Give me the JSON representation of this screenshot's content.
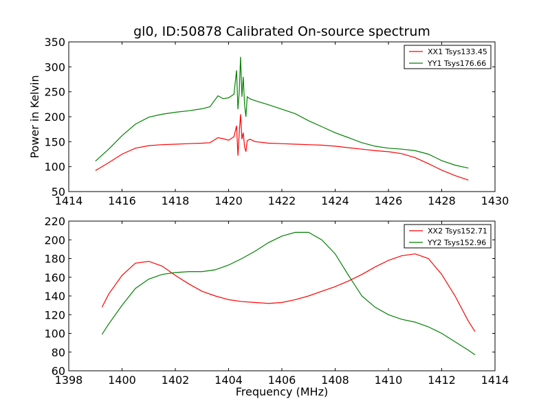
{
  "chart_data": [
    {
      "type": "line",
      "title": "gl0, ID:50878 Calibrated On-source spectrum",
      "xlabel": "",
      "ylabel": "Power in Kelvin",
      "xlim": [
        1414,
        1430
      ],
      "ylim": [
        50,
        350
      ],
      "xticks": [
        1414,
        1416,
        1418,
        1420,
        1422,
        1424,
        1426,
        1428,
        1430
      ],
      "yticks": [
        50,
        100,
        150,
        200,
        250,
        300,
        350
      ],
      "grid": false,
      "legend": "top-right",
      "series": [
        {
          "name": "XX1 Tsys133.45",
          "color": "#ff0000",
          "x": [
            1415.0,
            1415.5,
            1416.0,
            1416.5,
            1417.0,
            1417.5,
            1418.0,
            1418.5,
            1419.0,
            1419.3,
            1419.6,
            1419.8,
            1420.0,
            1420.2,
            1420.3,
            1420.35,
            1420.4,
            1420.45,
            1420.5,
            1420.55,
            1420.6,
            1420.65,
            1420.7,
            1420.8,
            1421.0,
            1421.5,
            1422.0,
            1422.5,
            1423.0,
            1423.5,
            1424.0,
            1424.5,
            1425.0,
            1425.5,
            1426.0,
            1426.5,
            1427.0,
            1427.5,
            1428.0,
            1428.5,
            1429.0
          ],
          "y": [
            92,
            108,
            125,
            137,
            142,
            144,
            145,
            146,
            147,
            148,
            158,
            156,
            153,
            160,
            182,
            122,
            168,
            205,
            155,
            168,
            140,
            130,
            152,
            155,
            150,
            147,
            146,
            145,
            144,
            143,
            141,
            138,
            135,
            132,
            130,
            126,
            118,
            106,
            93,
            82,
            73
          ]
        },
        {
          "name": "YY1 Tsys176.66",
          "color": "#008000",
          "x": [
            1415.0,
            1415.5,
            1416.0,
            1416.5,
            1417.0,
            1417.5,
            1418.0,
            1418.5,
            1419.0,
            1419.3,
            1419.6,
            1419.8,
            1420.0,
            1420.2,
            1420.3,
            1420.35,
            1420.4,
            1420.45,
            1420.5,
            1420.55,
            1420.6,
            1420.65,
            1420.7,
            1420.8,
            1421.0,
            1421.5,
            1422.0,
            1422.5,
            1423.0,
            1423.5,
            1424.0,
            1424.5,
            1425.0,
            1425.5,
            1426.0,
            1426.5,
            1427.0,
            1427.5,
            1428.0,
            1428.5,
            1429.0
          ],
          "y": [
            111,
            135,
            162,
            185,
            199,
            205,
            209,
            212,
            216,
            220,
            242,
            236,
            238,
            245,
            293,
            215,
            250,
            320,
            240,
            280,
            225,
            200,
            240,
            236,
            232,
            224,
            215,
            206,
            192,
            180,
            168,
            158,
            148,
            141,
            137,
            135,
            132,
            125,
            112,
            103,
            97
          ]
        }
      ]
    },
    {
      "type": "line",
      "title": "",
      "xlabel": "Frequency (MHz)",
      "ylabel": "",
      "xlim": [
        1398,
        1414
      ],
      "ylim": [
        60,
        220
      ],
      "xticks": [
        1398,
        1400,
        1402,
        1404,
        1406,
        1408,
        1410,
        1412,
        1414
      ],
      "yticks": [
        60,
        80,
        100,
        120,
        140,
        160,
        180,
        200,
        220
      ],
      "grid": false,
      "legend": "top-right",
      "series": [
        {
          "name": "XX2 Tsys152.71",
          "color": "#ff0000",
          "x": [
            1399.25,
            1399.5,
            1400.0,
            1400.5,
            1401.0,
            1401.5,
            1402.0,
            1402.5,
            1403.0,
            1403.5,
            1404.0,
            1404.5,
            1405.0,
            1405.5,
            1406.0,
            1406.5,
            1407.0,
            1407.5,
            1408.0,
            1408.5,
            1409.0,
            1409.5,
            1410.0,
            1410.5,
            1411.0,
            1411.5,
            1412.0,
            1412.5,
            1413.0,
            1413.25
          ],
          "y": [
            128,
            142,
            162,
            175,
            177,
            172,
            162,
            153,
            145,
            140,
            136,
            134,
            133,
            132,
            133,
            136,
            140,
            145,
            150,
            156,
            163,
            171,
            178,
            183,
            185,
            180,
            163,
            140,
            113,
            102
          ]
        },
        {
          "name": "YY2 Tsys152.96",
          "color": "#008000",
          "x": [
            1399.25,
            1399.5,
            1400.0,
            1400.5,
            1401.0,
            1401.5,
            1402.0,
            1402.5,
            1403.0,
            1403.5,
            1404.0,
            1404.5,
            1405.0,
            1405.5,
            1406.0,
            1406.5,
            1407.0,
            1407.5,
            1408.0,
            1408.5,
            1409.0,
            1409.5,
            1410.0,
            1410.5,
            1411.0,
            1411.5,
            1412.0,
            1412.5,
            1413.0,
            1413.25
          ],
          "y": [
            99,
            110,
            130,
            148,
            158,
            163,
            165,
            166,
            166,
            168,
            173,
            180,
            188,
            197,
            204,
            208,
            208,
            200,
            185,
            162,
            140,
            128,
            120,
            115,
            112,
            107,
            100,
            91,
            82,
            77
          ]
        }
      ]
    }
  ]
}
